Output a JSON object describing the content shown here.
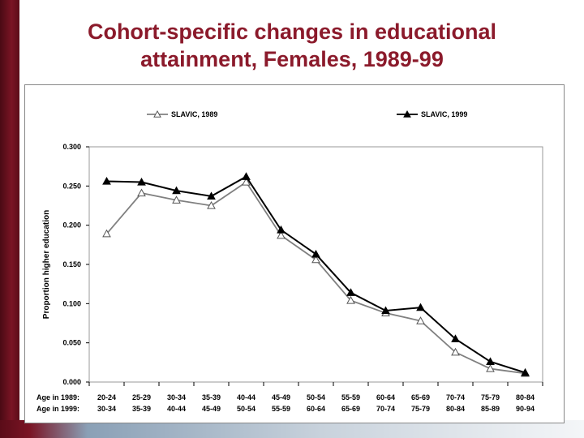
{
  "slide": {
    "title_line1": "Cohort-specific changes in educational",
    "title_line2": "attainment, Females, 1989-99"
  },
  "chart_data": {
    "type": "line",
    "ylabel": "Proportion higher education",
    "ylim": [
      0,
      0.3
    ],
    "yticks": [
      "0.000",
      "0.050",
      "0.100",
      "0.150",
      "0.200",
      "0.250",
      "0.300"
    ],
    "row_labels": [
      "Age in 1989:",
      "Age in 1999:"
    ],
    "categories_1989": [
      "20-24",
      "25-29",
      "30-34",
      "35-39",
      "40-44",
      "45-49",
      "50-54",
      "55-59",
      "60-64",
      "65-69",
      "70-74",
      "75-79",
      "80-84"
    ],
    "categories_1999": [
      "30-34",
      "35-39",
      "40-44",
      "45-49",
      "50-54",
      "55-59",
      "60-64",
      "65-69",
      "70-74",
      "75-79",
      "80-84",
      "85-89",
      "90-94"
    ],
    "legend_position": "top",
    "grid": false,
    "series": [
      {
        "name": "SLAVIC, 1989",
        "marker": "open-triangle",
        "color": "#808080",
        "values": [
          0.189,
          0.241,
          0.232,
          0.225,
          0.255,
          0.187,
          0.156,
          0.104,
          0.088,
          0.078,
          0.038,
          0.017,
          0.011
        ]
      },
      {
        "name": "SLAVIC, 1999",
        "marker": "filled-triangle",
        "color": "#000000",
        "values": [
          0.256,
          0.255,
          0.244,
          0.237,
          0.262,
          0.194,
          0.163,
          0.114,
          0.091,
          0.095,
          0.055,
          0.026,
          0.012
        ]
      }
    ]
  }
}
